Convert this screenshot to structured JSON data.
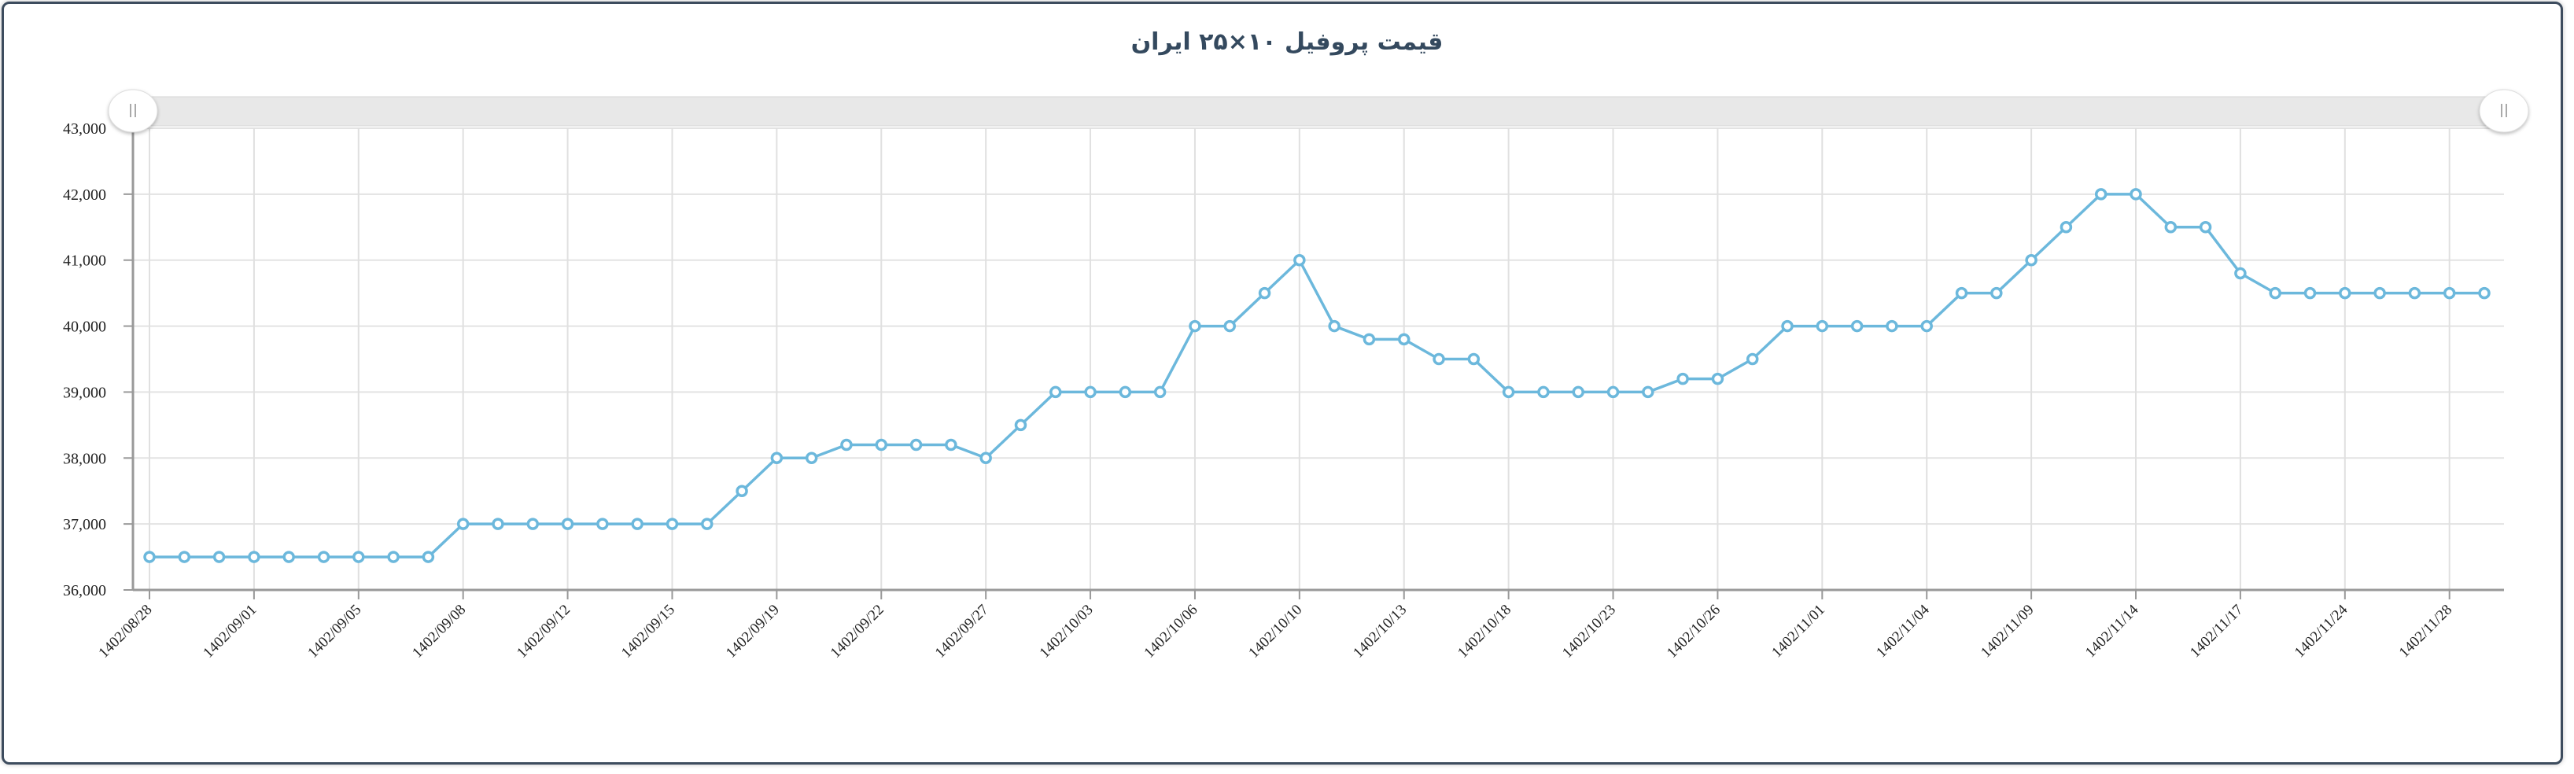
{
  "chart_data": {
    "type": "line",
    "title": "قیمت پروفیل ۱۰×۲۵ ایران",
    "xlabel": "",
    "ylabel": "",
    "ylim": [
      36000,
      43000
    ],
    "yticks": [
      "36,000",
      "37,000",
      "38,000",
      "39,000",
      "40,000",
      "41,000",
      "42,000",
      "43,000"
    ],
    "ytick_values": [
      36000,
      37000,
      38000,
      39000,
      40000,
      41000,
      42000,
      43000
    ],
    "xtick_labels": [
      "1402/08/28",
      "1402/09/01",
      "1402/09/05",
      "1402/09/08",
      "1402/09/12",
      "1402/09/15",
      "1402/09/19",
      "1402/09/22",
      "1402/09/27",
      "1402/10/03",
      "1402/10/06",
      "1402/10/10",
      "1402/10/13",
      "1402/10/18",
      "1402/10/23",
      "1402/10/26",
      "1402/11/01",
      "1402/11/04",
      "1402/11/09",
      "1402/11/14",
      "1402/11/17",
      "1402/11/24",
      "1402/11/28"
    ],
    "xtick_every": 3,
    "grid": true,
    "line_color": "#6cb8dc",
    "series": [
      {
        "values": [
          36500,
          36500,
          36500,
          36500,
          36500,
          36500,
          36500,
          36500,
          36500,
          37000,
          37000,
          37000,
          37000,
          37000,
          37000,
          37000,
          37000,
          37500,
          38000,
          38000,
          38200,
          38200,
          38200,
          38200,
          38000,
          38500,
          39000,
          39000,
          39000,
          39000,
          40000,
          40000,
          40500,
          41000,
          40000,
          39800,
          39800,
          39500,
          39500,
          39000,
          39000,
          39000,
          39000,
          39000,
          39200,
          39200,
          39500,
          40000,
          40000,
          40000,
          40000,
          40000,
          40500,
          40500,
          41000,
          41500,
          42000,
          42000,
          41500,
          41500,
          40800,
          40500,
          40500,
          40500,
          40500,
          40500,
          40500,
          40500
        ]
      }
    ]
  },
  "navigator": {
    "handle_left_icon": "grip-icon",
    "handle_right_icon": "grip-icon"
  }
}
